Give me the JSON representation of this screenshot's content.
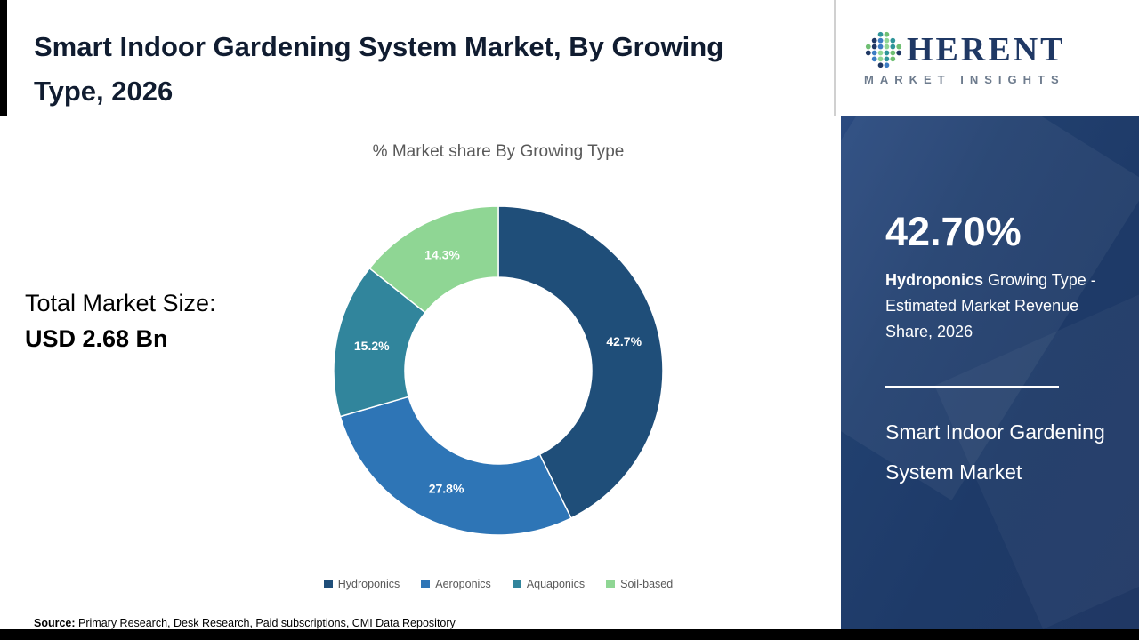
{
  "page": {
    "title": "Smart Indoor Gardening System Market, By Growing Type, 2026",
    "source_label": "Source:",
    "source_text": " Primary Research, Desk Research, Paid subscriptions, CMI Data Repository"
  },
  "left": {
    "total_label": "Total Market Size:",
    "total_value": "USD 2.68 Bn"
  },
  "chart_data": {
    "type": "pie",
    "subtype": "donut",
    "title": "% Market share By Growing Type",
    "categories": [
      "Hydroponics",
      "Aeroponics",
      "Aquaponics",
      "Soil-based"
    ],
    "values": [
      42.7,
      27.8,
      15.2,
      14.3
    ],
    "labels": [
      "42.7%",
      "27.8%",
      "15.2%",
      "14.3%"
    ],
    "colors": [
      "#1f4e79",
      "#2e75b6",
      "#31859c",
      "#8fd694"
    ],
    "start_angle_deg": -90,
    "direction": "clockwise",
    "legend_position": "bottom"
  },
  "sidebar": {
    "stat_value": "42.70%",
    "stat_bold": "Hydroponics",
    "stat_rest": " Growing Type - Estimated Market Revenue Share, 2026",
    "market_name": "Smart Indoor Gardening System Market",
    "bg_color": "#203864"
  },
  "logo": {
    "word_rest": "HERENT",
    "word_sub": "MARKET INSIGHTS",
    "icon_colors": [
      "#2e9599",
      "#6fbf73",
      "#1f3864",
      "#3c7dc4",
      "#8fd694"
    ]
  }
}
